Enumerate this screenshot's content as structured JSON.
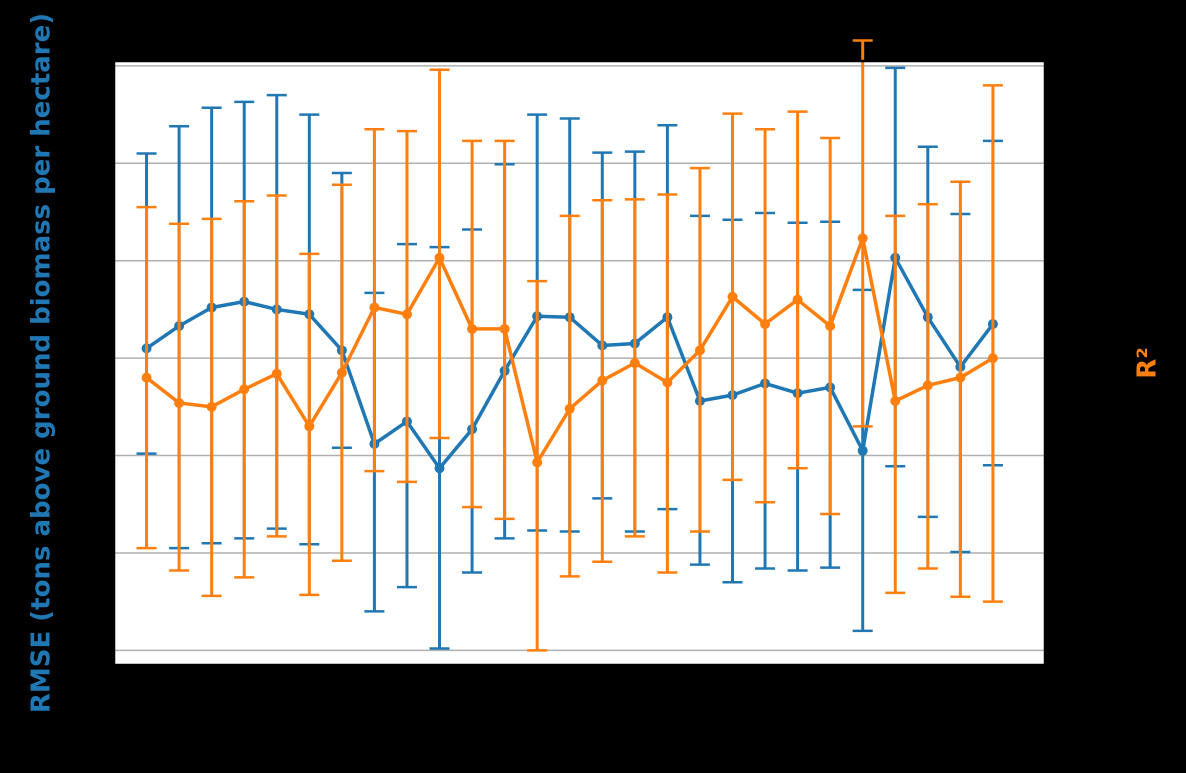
{
  "colors": {
    "background": "#000000",
    "plot_background": "#ffffff",
    "grid": "#b0b0b0",
    "frame": "#000000",
    "series_rmse": "#1f77b4",
    "series_r2": "#ff7f0e"
  },
  "chart_data": {
    "type": "line",
    "title": "",
    "xlabel": "",
    "ylabel_left": "RMSE (tons above ground biomass per hectare)",
    "ylabel_right": "R²",
    "grid": true,
    "legend": "none",
    "x": [
      1,
      2,
      3,
      4,
      5,
      6,
      7,
      8,
      9,
      10,
      11,
      12,
      13,
      14,
      15,
      16,
      17,
      18,
      19,
      20,
      21,
      22,
      23,
      24,
      25,
      26,
      27
    ],
    "xlim": [
      0,
      28.6
    ],
    "x_ticks": [
      1,
      6,
      11,
      16,
      21,
      26
    ],
    "y_scale": {
      "ylim": [
        -0.15,
        6.05
      ],
      "gridlines": [
        0,
        1,
        2,
        3,
        4,
        5,
        6
      ]
    },
    "series": [
      {
        "color": "#1f77b4",
        "axis": "left",
        "values": [
          3.1,
          3.33,
          3.52,
          3.58,
          3.5,
          3.45,
          3.08,
          2.12,
          2.35,
          1.87,
          2.27,
          2.87,
          3.43,
          3.42,
          3.13,
          3.15,
          3.42,
          2.56,
          2.62,
          2.74,
          2.64,
          2.7,
          2.05,
          4.03,
          3.42,
          2.91,
          3.35
        ],
        "err_low": [
          1.08,
          2.28,
          2.42,
          2.43,
          2.25,
          2.36,
          1.0,
          1.72,
          1.7,
          1.85,
          1.47,
          1.72,
          2.2,
          2.2,
          1.57,
          1.93,
          1.97,
          1.68,
          1.92,
          1.9,
          1.82,
          1.85,
          1.85,
          2.14,
          2.05,
          1.9,
          1.45
        ],
        "err_high": [
          2.0,
          2.05,
          2.05,
          2.05,
          2.2,
          2.05,
          1.82,
          1.55,
          1.82,
          2.27,
          2.05,
          2.12,
          2.07,
          2.04,
          1.98,
          1.97,
          1.97,
          1.9,
          1.8,
          1.75,
          1.75,
          1.7,
          1.65,
          1.95,
          1.75,
          1.57,
          1.88
        ]
      },
      {
        "color": "#ff7f0e",
        "axis": "left",
        "values": [
          2.8,
          2.54,
          2.5,
          2.68,
          2.84,
          2.3,
          2.85,
          3.52,
          3.45,
          4.03,
          3.3,
          3.3,
          1.93,
          2.48,
          2.77,
          2.95,
          2.75,
          3.08,
          3.63,
          3.35,
          3.6,
          3.33,
          4.23,
          2.56,
          2.72,
          2.8,
          3.0
        ],
        "err_low": [
          1.75,
          1.72,
          1.94,
          1.93,
          1.67,
          1.73,
          1.93,
          1.68,
          1.72,
          1.85,
          1.83,
          1.95,
          1.93,
          1.72,
          1.86,
          1.78,
          1.95,
          1.86,
          1.88,
          1.83,
          1.73,
          1.93,
          1.93,
          1.97,
          1.88,
          2.25,
          2.5
        ],
        "err_high": [
          1.75,
          1.84,
          1.93,
          1.93,
          1.83,
          1.77,
          1.93,
          1.83,
          1.88,
          1.93,
          1.93,
          1.93,
          1.86,
          1.98,
          1.85,
          1.68,
          1.93,
          1.87,
          1.88,
          2.0,
          1.93,
          1.93,
          2.03,
          1.9,
          1.86,
          2.01,
          2.8
        ]
      }
    ]
  }
}
